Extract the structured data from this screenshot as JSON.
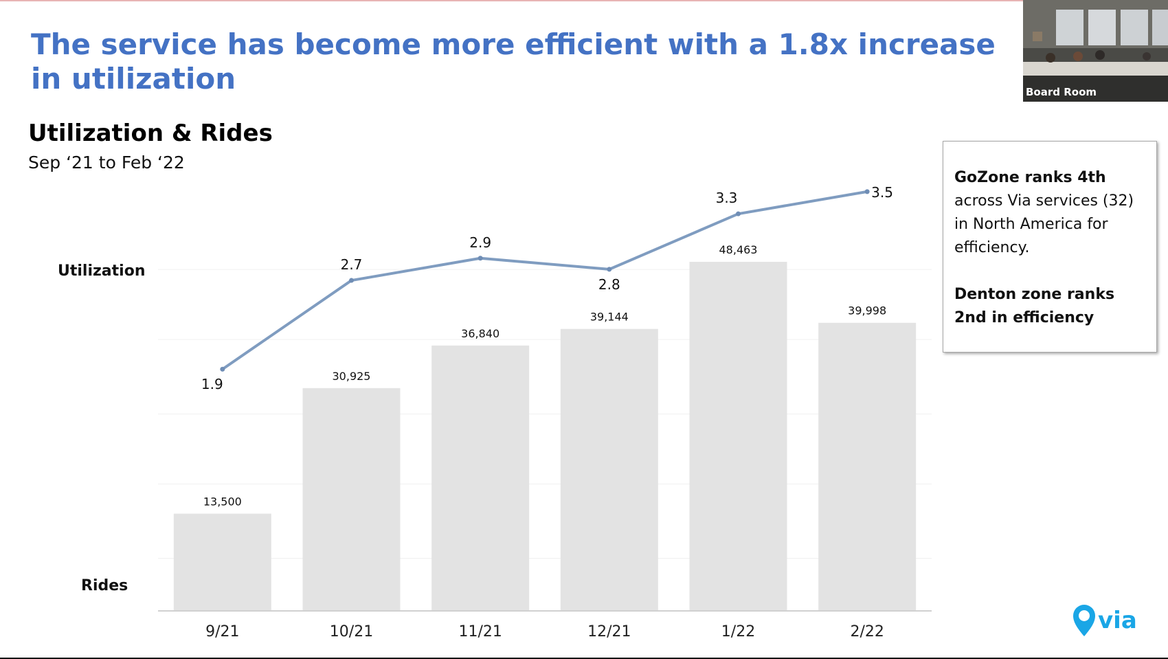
{
  "slide": {
    "title": "The service has become more efficient with a 1.8x increase in utilization",
    "brand_color": "#4472c4"
  },
  "chart_heading": "Utilization & Rides",
  "chart_subtitle": "Sep ‘21 to Feb ‘22",
  "chart_data": {
    "type": "bar",
    "title": "Utilization & Rides",
    "subtitle": "Sep ‘21 to Feb ‘22",
    "categories": [
      "9/21",
      "10/21",
      "11/21",
      "12/21",
      "1/22",
      "2/22"
    ],
    "series": [
      {
        "name": "Rides",
        "type": "bar",
        "values": [
          13500,
          30925,
          36840,
          39144,
          48463,
          39998
        ],
        "labels": [
          "13,500",
          "30,925",
          "36,840",
          "39,144",
          "48,463",
          "39,998"
        ],
        "color": "#e3e3e3"
      },
      {
        "name": "Utilization",
        "type": "line",
        "values": [
          1.9,
          2.7,
          2.9,
          2.8,
          3.3,
          3.5
        ],
        "labels": [
          "1.9",
          "2.7",
          "2.9",
          "2.8",
          "3.3",
          "3.5"
        ],
        "color": "#7f9cc0"
      }
    ],
    "row_labels": {
      "top": "Utilization",
      "bottom": "Rides"
    },
    "ylim_rides": [
      0,
      56000
    ],
    "ylim_utilization": [
      0,
      4.1
    ],
    "grid": true
  },
  "info_box": {
    "line1_bold": "GoZone ranks 4th",
    "line1_rest": "across Via services (32) in North America for efficiency.",
    "line2_bold": "Denton zone ranks 2nd in efficiency"
  },
  "camera_tile": {
    "label": "Board Room"
  },
  "logo": {
    "text": "via",
    "color": "#1aa6e6"
  }
}
